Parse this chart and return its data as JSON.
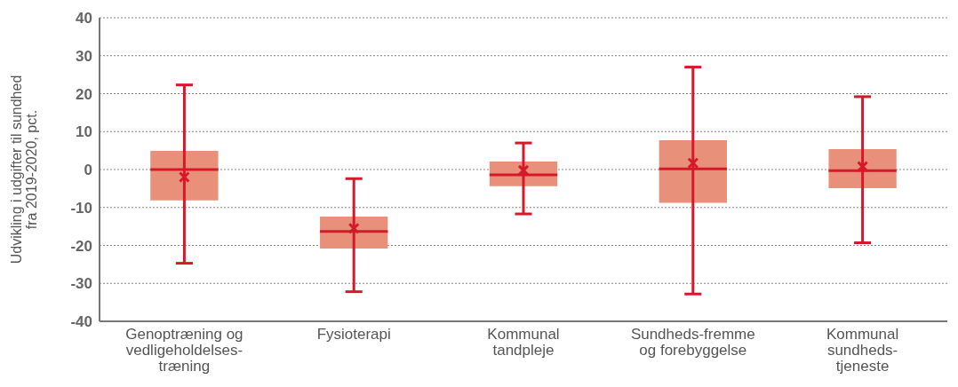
{
  "chart_data": {
    "type": "box",
    "ylabel": "Udvikling i udgifter til sundhed fra 2019-2020, pct.",
    "categories": [
      "Genoptræning og vedligeholdelses-træning",
      "Fysioterapi",
      "Kommunal tandpleje",
      "Sundheds-fremme og forebyggelse",
      "Kommunal sundheds-tjeneste"
    ],
    "color": "#e8907a",
    "boxes": [
      {
        "low": -24.7,
        "q1": -8.1,
        "median": 0,
        "q3": 4.9,
        "high": 22.3,
        "mean": -2.0
      },
      {
        "low": -32.2,
        "q1": -20.8,
        "median": -16.3,
        "q3": -12.4,
        "high": -2.4,
        "mean": -15.5
      },
      {
        "low": -11.7,
        "q1": -4.4,
        "median": -1.4,
        "q3": 2.1,
        "high": 7.0,
        "mean": -0.2
      },
      {
        "low": -32.8,
        "q1": -8.8,
        "median": 0.2,
        "q3": 7.7,
        "high": 27.0,
        "mean": 1.7
      },
      {
        "low": -19.3,
        "q1": -4.9,
        "median": -0.3,
        "q3": 5.4,
        "high": 19.2,
        "mean": 0.8
      }
    ],
    "ylim": [
      -40,
      40
    ],
    "yticks": [
      -40,
      -30,
      -20,
      -10,
      0,
      10,
      20,
      30,
      40
    ],
    "grid": "y",
    "marker": "cross"
  }
}
